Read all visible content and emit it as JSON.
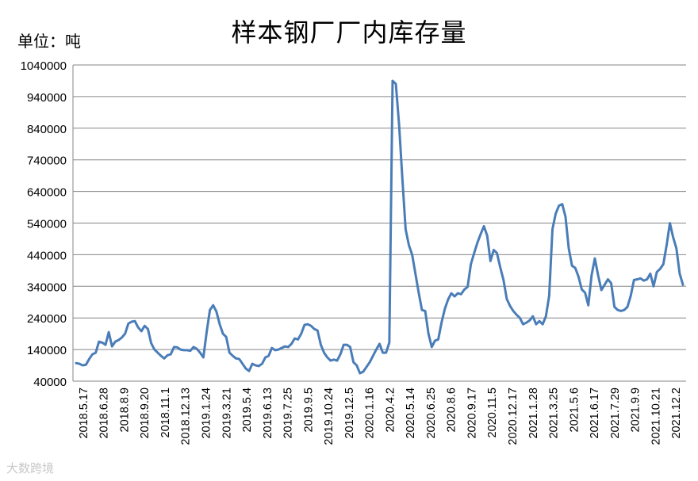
{
  "chart_data": {
    "type": "line",
    "title": "样本钢厂厂内库存量",
    "unit_label": "单位：吨",
    "ylim": [
      40000,
      1040000
    ],
    "y_ticks": [
      40000,
      140000,
      240000,
      340000,
      440000,
      540000,
      640000,
      740000,
      840000,
      940000,
      1040000
    ],
    "x_tick_labels": [
      "2018.5.17",
      "2018.6.28",
      "2018.8.9",
      "2018.9.20",
      "2018.11.1",
      "2018.12.13",
      "2019.1.24",
      "2019.3.21",
      "2019.5.4",
      "2019.6.13",
      "2019.7.25",
      "2019.9.5",
      "2019.10.24",
      "2019.12.5",
      "2020.1.16",
      "2020.4.2",
      "2020.5.14",
      "2020.6.25",
      "2020.8.6",
      "2020.9.17",
      "2020.11.5",
      "2020.12.17",
      "2021.1.28",
      "2021.3.25",
      "2021.5.6",
      "2021.6.17",
      "2021.7.29",
      "2021.9.9",
      "2021.10.21",
      "2021.12.2"
    ],
    "grid": true,
    "legend": "none",
    "line_color": "#4a7db8",
    "series": [
      {
        "values": [
          97000,
          95000,
          90000,
          92000,
          110000,
          125000,
          130000,
          165000,
          162000,
          155000,
          195000,
          150000,
          165000,
          170000,
          178000,
          190000,
          222000,
          228000,
          230000,
          210000,
          198000,
          215000,
          205000,
          160000,
          140000,
          130000,
          120000,
          112000,
          122000,
          125000,
          148000,
          147000,
          140000,
          138000,
          138000,
          136000,
          148000,
          142000,
          130000,
          115000,
          195000,
          265000,
          280000,
          260000,
          220000,
          190000,
          180000,
          130000,
          120000,
          112000,
          110000,
          95000,
          80000,
          72000,
          95000,
          90000,
          88000,
          95000,
          115000,
          120000,
          145000,
          138000,
          140000,
          145000,
          150000,
          148000,
          158000,
          175000,
          172000,
          190000,
          218000,
          220000,
          215000,
          205000,
          200000,
          155000,
          130000,
          115000,
          105000,
          108000,
          105000,
          125000,
          155000,
          155000,
          148000,
          100000,
          90000,
          65000,
          70000,
          85000,
          100000,
          120000,
          140000,
          158000,
          130000,
          130000,
          162000,
          990000,
          980000,
          850000,
          680000,
          520000,
          470000,
          440000,
          380000,
          320000,
          265000,
          262000,
          190000,
          148000,
          168000,
          172000,
          225000,
          268000,
          298000,
          318000,
          308000,
          318000,
          315000,
          330000,
          338000,
          410000,
          445000,
          478000,
          505000,
          530000,
          500000,
          420000,
          455000,
          445000,
          400000,
          360000,
          300000,
          278000,
          262000,
          250000,
          240000,
          220000,
          225000,
          232000,
          245000,
          220000,
          230000,
          220000,
          245000,
          310000,
          520000,
          570000,
          595000,
          600000,
          560000,
          460000,
          405000,
          398000,
          370000,
          330000,
          320000,
          280000,
          375000,
          428000,
          375000,
          328000,
          345000,
          362000,
          350000,
          275000,
          265000,
          262000,
          265000,
          275000,
          310000,
          360000,
          362000,
          365000,
          358000,
          362000,
          380000,
          340000,
          385000,
          395000,
          410000,
          470000,
          540000,
          495000,
          460000,
          380000,
          345000
        ]
      }
    ]
  },
  "watermark": "大数跨境"
}
